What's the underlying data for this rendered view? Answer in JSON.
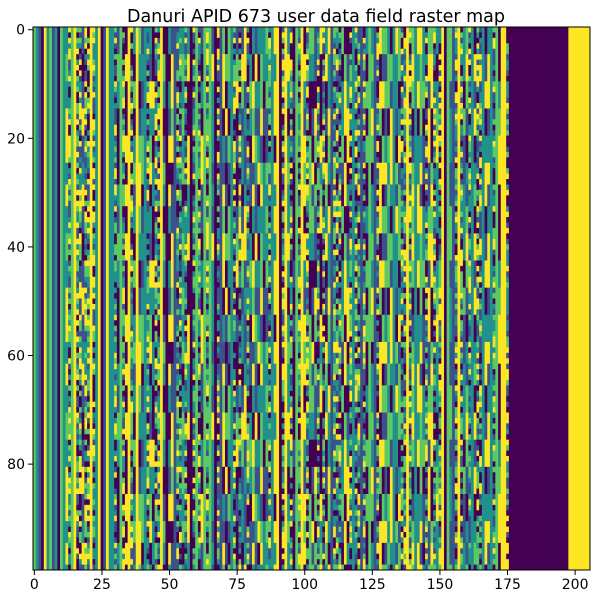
{
  "chart_data": {
    "type": "heatmap",
    "title": "Danuri APID 673 user data field raster map",
    "xlabel": "",
    "ylabel": "",
    "xlim": [
      -0.5,
      205.5
    ],
    "ylim": [
      99.5,
      -0.5
    ],
    "n_cols": 206,
    "n_rows": 100,
    "x_ticks": [
      0,
      25,
      50,
      75,
      100,
      125,
      150,
      175,
      200
    ],
    "y_ticks": [
      0,
      20,
      40,
      60,
      80
    ],
    "colormap": "viridis",
    "palette": [
      "#440154",
      "#3b528b",
      "#21918c",
      "#5ec962",
      "#fde725"
    ],
    "value_range": [
      0,
      1
    ],
    "grid": false,
    "legend": "none",
    "notes": "Repeating block pattern with period ~33 rows; columns 198–205 constant at max (yellow); columns 176–197 constant at min (purple); columns 0–12 mostly constant vertical stripes."
  }
}
